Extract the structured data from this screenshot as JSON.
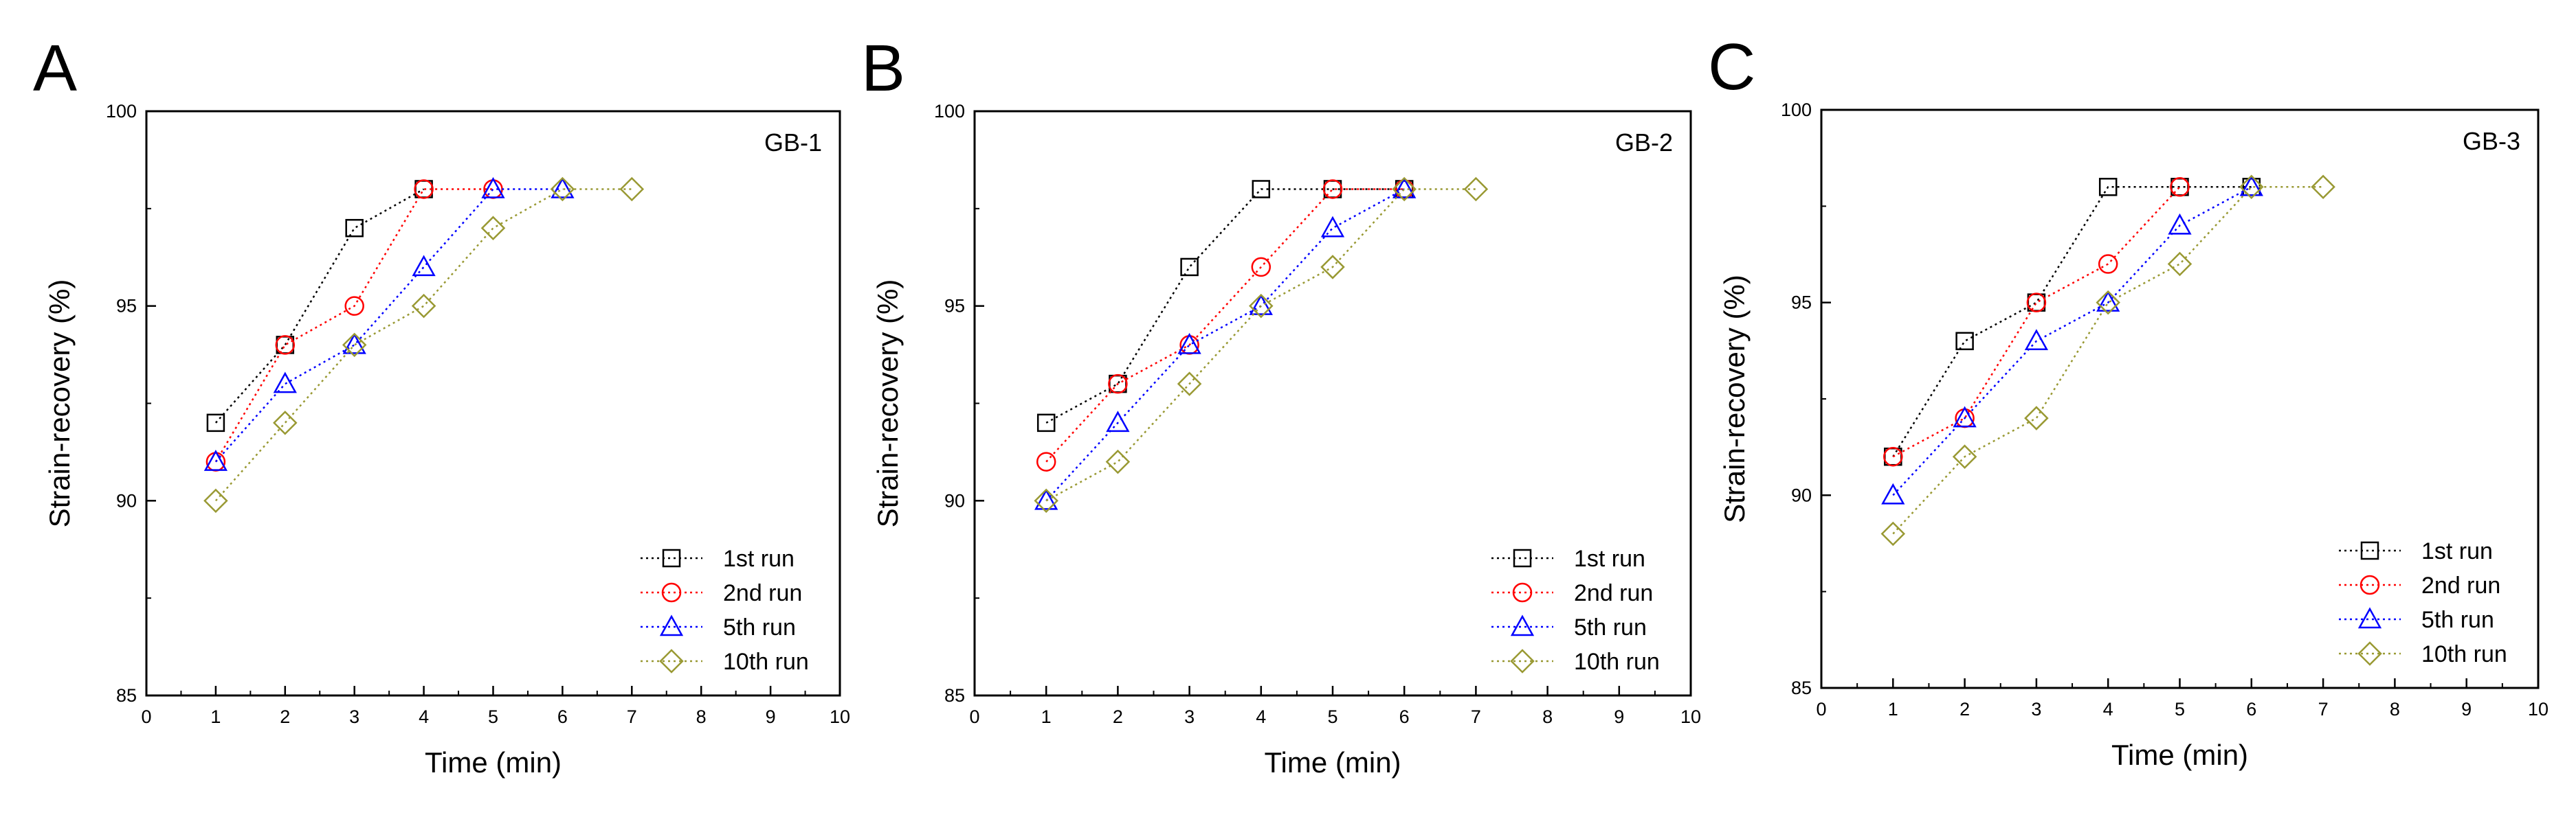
{
  "colors": {
    "series": [
      "#000000",
      "#ff0000",
      "#0000ff",
      "#999933"
    ],
    "axis": "#000000"
  },
  "chart_data": [
    {
      "type": "line",
      "panel_label": "A",
      "title": "GB-1",
      "xlabel": "Time (min)",
      "ylabel": "Strain-recovery (%)",
      "xlim": [
        0,
        10
      ],
      "ylim": [
        85,
        100
      ],
      "xticks": [
        0,
        1,
        2,
        3,
        4,
        5,
        6,
        7,
        8,
        9,
        10
      ],
      "yticks": [
        85,
        90,
        95,
        100
      ],
      "legend_position": "bottom-right",
      "series": [
        {
          "name": "1st run",
          "marker": "square",
          "x": [
            1,
            2,
            3,
            4
          ],
          "values": [
            92,
            94,
            97,
            98
          ]
        },
        {
          "name": "2nd run",
          "marker": "circle",
          "x": [
            1,
            2,
            3,
            4,
            5
          ],
          "values": [
            91,
            94,
            95,
            98,
            98
          ]
        },
        {
          "name": "5th run",
          "marker": "triangle",
          "x": [
            1,
            2,
            3,
            4,
            5,
            6
          ],
          "values": [
            91,
            93,
            94,
            96,
            98,
            98
          ]
        },
        {
          "name": "10th run",
          "marker": "diamond",
          "x": [
            1,
            2,
            3,
            4,
            5,
            6,
            7
          ],
          "values": [
            90,
            92,
            94,
            95,
            97,
            98,
            98
          ]
        }
      ]
    },
    {
      "type": "line",
      "panel_label": "B",
      "title": "GB-2",
      "xlabel": "Time (min)",
      "ylabel": "Strain-recovery (%)",
      "xlim": [
        0,
        10
      ],
      "ylim": [
        85,
        100
      ],
      "xticks": [
        0,
        1,
        2,
        3,
        4,
        5,
        6,
        7,
        8,
        9,
        10
      ],
      "yticks": [
        85,
        90,
        95,
        100
      ],
      "legend_position": "bottom-right",
      "series": [
        {
          "name": "1st run",
          "marker": "square",
          "x": [
            1,
            2,
            3,
            4,
            5,
            6
          ],
          "values": [
            92,
            93,
            96,
            98,
            98,
            98
          ]
        },
        {
          "name": "2nd run",
          "marker": "circle",
          "x": [
            1,
            2,
            3,
            4,
            5,
            6
          ],
          "values": [
            91,
            93,
            94,
            96,
            98,
            98
          ]
        },
        {
          "name": "5th run",
          "marker": "triangle",
          "x": [
            1,
            2,
            3,
            4,
            5,
            6
          ],
          "values": [
            90,
            92,
            94,
            95,
            97,
            98
          ]
        },
        {
          "name": "10th run",
          "marker": "diamond",
          "x": [
            1,
            2,
            3,
            4,
            5,
            6,
            7
          ],
          "values": [
            90,
            91,
            93,
            95,
            96,
            98,
            98
          ]
        }
      ]
    },
    {
      "type": "line",
      "panel_label": "C",
      "title": "GB-3",
      "xlabel": "Time (min)",
      "ylabel": "Strain-recovery (%)",
      "xlim": [
        0,
        10
      ],
      "ylim": [
        85,
        100
      ],
      "xticks": [
        0,
        1,
        2,
        3,
        4,
        5,
        6,
        7,
        8,
        9,
        10
      ],
      "yticks": [
        85,
        90,
        95,
        100
      ],
      "legend_position": "bottom-right",
      "series": [
        {
          "name": "1st run",
          "marker": "square",
          "x": [
            1,
            2,
            3,
            4,
            5,
            6
          ],
          "values": [
            91,
            94,
            95,
            98,
            98,
            98
          ]
        },
        {
          "name": "2nd run",
          "marker": "circle",
          "x": [
            1,
            2,
            3,
            4,
            5
          ],
          "values": [
            91,
            92,
            95,
            96,
            98
          ]
        },
        {
          "name": "5th run",
          "marker": "triangle",
          "x": [
            1,
            2,
            3,
            4,
            5,
            6
          ],
          "values": [
            90,
            92,
            94,
            95,
            97,
            98
          ]
        },
        {
          "name": "10th run",
          "marker": "diamond",
          "x": [
            1,
            2,
            3,
            4,
            5,
            6,
            7
          ],
          "values": [
            89,
            91,
            92,
            95,
            96,
            98,
            98
          ]
        }
      ]
    }
  ]
}
